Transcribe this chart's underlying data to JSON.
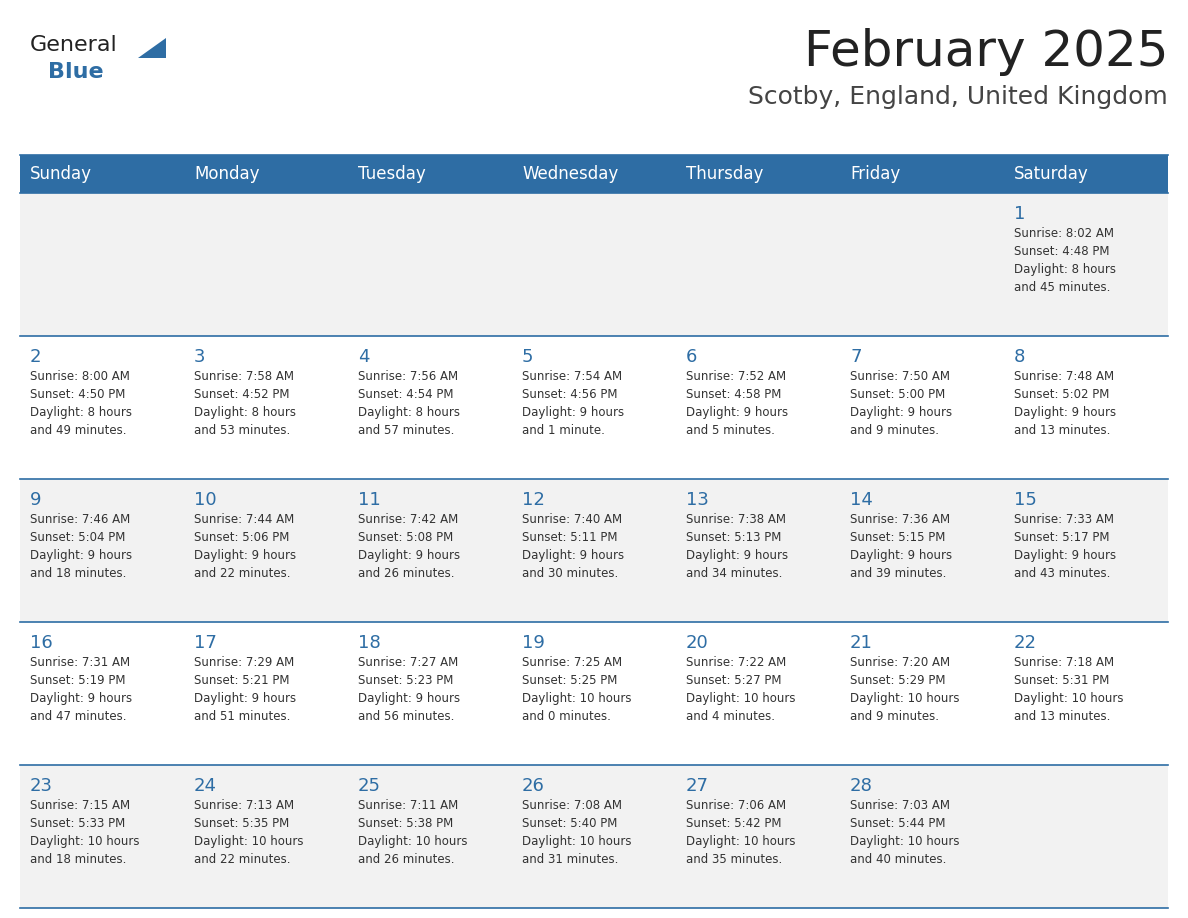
{
  "title": "February 2025",
  "subtitle": "Scotby, England, United Kingdom",
  "days_of_week": [
    "Sunday",
    "Monday",
    "Tuesday",
    "Wednesday",
    "Thursday",
    "Friday",
    "Saturday"
  ],
  "header_bg": "#2E6DA4",
  "header_text": "#FFFFFF",
  "cell_bg_even": "#F2F2F2",
  "cell_bg_odd": "#FFFFFF",
  "border_color": "#2E6DA4",
  "day_num_color": "#2E6DA4",
  "info_color": "#333333",
  "title_color": "#222222",
  "subtitle_color": "#444444",
  "logo_general_color": "#222222",
  "logo_blue_color": "#2E6DA4",
  "logo_triangle_color": "#2E6DA4",
  "days": [
    {
      "date": 1,
      "row": 0,
      "col": 6,
      "sunrise": "8:02 AM",
      "sunset": "4:48 PM",
      "daylight": "8 hours and 45 minutes"
    },
    {
      "date": 2,
      "row": 1,
      "col": 0,
      "sunrise": "8:00 AM",
      "sunset": "4:50 PM",
      "daylight": "8 hours and 49 minutes"
    },
    {
      "date": 3,
      "row": 1,
      "col": 1,
      "sunrise": "7:58 AM",
      "sunset": "4:52 PM",
      "daylight": "8 hours and 53 minutes"
    },
    {
      "date": 4,
      "row": 1,
      "col": 2,
      "sunrise": "7:56 AM",
      "sunset": "4:54 PM",
      "daylight": "8 hours and 57 minutes"
    },
    {
      "date": 5,
      "row": 1,
      "col": 3,
      "sunrise": "7:54 AM",
      "sunset": "4:56 PM",
      "daylight": "9 hours and 1 minute"
    },
    {
      "date": 6,
      "row": 1,
      "col": 4,
      "sunrise": "7:52 AM",
      "sunset": "4:58 PM",
      "daylight": "9 hours and 5 minutes"
    },
    {
      "date": 7,
      "row": 1,
      "col": 5,
      "sunrise": "7:50 AM",
      "sunset": "5:00 PM",
      "daylight": "9 hours and 9 minutes"
    },
    {
      "date": 8,
      "row": 1,
      "col": 6,
      "sunrise": "7:48 AM",
      "sunset": "5:02 PM",
      "daylight": "9 hours and 13 minutes"
    },
    {
      "date": 9,
      "row": 2,
      "col": 0,
      "sunrise": "7:46 AM",
      "sunset": "5:04 PM",
      "daylight": "9 hours and 18 minutes"
    },
    {
      "date": 10,
      "row": 2,
      "col": 1,
      "sunrise": "7:44 AM",
      "sunset": "5:06 PM",
      "daylight": "9 hours and 22 minutes"
    },
    {
      "date": 11,
      "row": 2,
      "col": 2,
      "sunrise": "7:42 AM",
      "sunset": "5:08 PM",
      "daylight": "9 hours and 26 minutes"
    },
    {
      "date": 12,
      "row": 2,
      "col": 3,
      "sunrise": "7:40 AM",
      "sunset": "5:11 PM",
      "daylight": "9 hours and 30 minutes"
    },
    {
      "date": 13,
      "row": 2,
      "col": 4,
      "sunrise": "7:38 AM",
      "sunset": "5:13 PM",
      "daylight": "9 hours and 34 minutes"
    },
    {
      "date": 14,
      "row": 2,
      "col": 5,
      "sunrise": "7:36 AM",
      "sunset": "5:15 PM",
      "daylight": "9 hours and 39 minutes"
    },
    {
      "date": 15,
      "row": 2,
      "col": 6,
      "sunrise": "7:33 AM",
      "sunset": "5:17 PM",
      "daylight": "9 hours and 43 minutes"
    },
    {
      "date": 16,
      "row": 3,
      "col": 0,
      "sunrise": "7:31 AM",
      "sunset": "5:19 PM",
      "daylight": "9 hours and 47 minutes"
    },
    {
      "date": 17,
      "row": 3,
      "col": 1,
      "sunrise": "7:29 AM",
      "sunset": "5:21 PM",
      "daylight": "9 hours and 51 minutes"
    },
    {
      "date": 18,
      "row": 3,
      "col": 2,
      "sunrise": "7:27 AM",
      "sunset": "5:23 PM",
      "daylight": "9 hours and 56 minutes"
    },
    {
      "date": 19,
      "row": 3,
      "col": 3,
      "sunrise": "7:25 AM",
      "sunset": "5:25 PM",
      "daylight": "10 hours and 0 minutes"
    },
    {
      "date": 20,
      "row": 3,
      "col": 4,
      "sunrise": "7:22 AM",
      "sunset": "5:27 PM",
      "daylight": "10 hours and 4 minutes"
    },
    {
      "date": 21,
      "row": 3,
      "col": 5,
      "sunrise": "7:20 AM",
      "sunset": "5:29 PM",
      "daylight": "10 hours and 9 minutes"
    },
    {
      "date": 22,
      "row": 3,
      "col": 6,
      "sunrise": "7:18 AM",
      "sunset": "5:31 PM",
      "daylight": "10 hours and 13 minutes"
    },
    {
      "date": 23,
      "row": 4,
      "col": 0,
      "sunrise": "7:15 AM",
      "sunset": "5:33 PM",
      "daylight": "10 hours and 18 minutes"
    },
    {
      "date": 24,
      "row": 4,
      "col": 1,
      "sunrise": "7:13 AM",
      "sunset": "5:35 PM",
      "daylight": "10 hours and 22 minutes"
    },
    {
      "date": 25,
      "row": 4,
      "col": 2,
      "sunrise": "7:11 AM",
      "sunset": "5:38 PM",
      "daylight": "10 hours and 26 minutes"
    },
    {
      "date": 26,
      "row": 4,
      "col": 3,
      "sunrise": "7:08 AM",
      "sunset": "5:40 PM",
      "daylight": "10 hours and 31 minutes"
    },
    {
      "date": 27,
      "row": 4,
      "col": 4,
      "sunrise": "7:06 AM",
      "sunset": "5:42 PM",
      "daylight": "10 hours and 35 minutes"
    },
    {
      "date": 28,
      "row": 4,
      "col": 5,
      "sunrise": "7:03 AM",
      "sunset": "5:44 PM",
      "daylight": "10 hours and 40 minutes"
    }
  ]
}
